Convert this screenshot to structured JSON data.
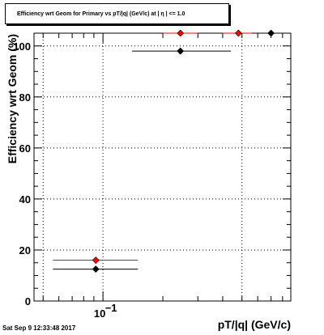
{
  "chart_data": {
    "type": "scatter",
    "title": "Efficiency wrt Geom for Primary vs pT/|q| (GeV/c) at | η | <= 1.0",
    "xlabel": "pT/|q| (GeV/c)",
    "ylabel": "Efficiency wrt Geom (%)",
    "x_scale": "log",
    "xlim": [
      0.045,
      0.88
    ],
    "ylim": [
      0,
      105
    ],
    "x_tick_labels": [
      "10^-1"
    ],
    "y_ticks": [
      0,
      20,
      40,
      60,
      80,
      100
    ],
    "grid": true,
    "series": [
      {
        "color": "#ff0000",
        "points": [
          {
            "x": 0.092,
            "y": 16.0,
            "xerr": [
              0.056,
              0.15
            ]
          },
          {
            "x": 0.245,
            "y": 105.0,
            "xerr": [
              0.2,
              0.3
            ]
          },
          {
            "x": 0.48,
            "y": 105.0,
            "xerr": [
              0.4,
              0.56
            ]
          }
        ]
      },
      {
        "color": "#000000",
        "points": [
          {
            "x": 0.092,
            "y": 12.5,
            "xerr": [
              0.056,
              0.15
            ]
          },
          {
            "x": 0.245,
            "y": 98.0,
            "xerr": [
              0.14,
              0.44
            ]
          },
          {
            "x": 0.7,
            "y": 105.0,
            "xerr": [
              0.56,
              0.88
            ]
          }
        ]
      }
    ]
  },
  "footer": {
    "timestamp": "Sat Sep  9 12:33:48 2017"
  }
}
